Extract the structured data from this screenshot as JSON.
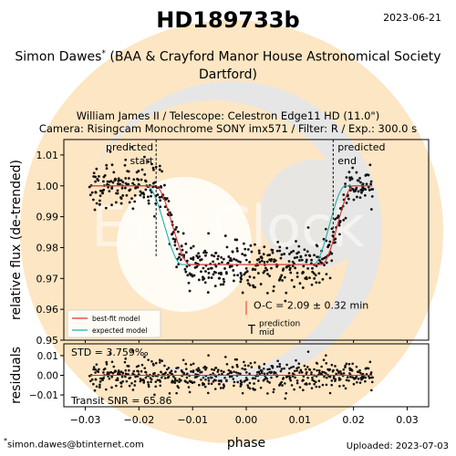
{
  "header": {
    "title": "HD189733b",
    "date": "2023-06-21",
    "observer": "Simon Dawes",
    "observer_mark": "*",
    "affiliation_line1": "(BAA & Crayford Manor House Astronomical Society",
    "affiliation_line2": "Dartford)",
    "instrument_line1": "William James II / Telescope: Celestron Edge11 HD (11.0\")",
    "instrument_line2": "Camera: Risingcam Monochrome SONY imx571 / Filter: R / Exp.: 300.0 s"
  },
  "footer": {
    "email": "simon.dawes@btinternet.com",
    "email_mark": "*",
    "uploaded": "Uploaded: 2023-07-03"
  },
  "watermark": {
    "text": "Exo Clock",
    "colors": {
      "orange": "#fde6c3",
      "grey": "#e6e6e6",
      "white": "#ffffff"
    }
  },
  "chart_data": {
    "type": "scatter",
    "xlabel": "phase",
    "ylabel": "relative flux (de-trended)",
    "residuals_ylabel": "residuals",
    "xlim": [
      -0.034,
      0.034
    ],
    "ylim": [
      0.95,
      1.015
    ],
    "residuals_ylim": [
      -0.016,
      0.016
    ],
    "x_ticks": [
      -0.03,
      -0.02,
      -0.01,
      0.0,
      0.01,
      0.02,
      0.03
    ],
    "x_tick_labels": [
      "−0.03",
      "−0.02",
      "−0.01",
      "0.00",
      "0.01",
      "0.02",
      "0.03"
    ],
    "y_ticks": [
      0.95,
      0.96,
      0.97,
      0.98,
      0.99,
      1.0,
      1.01
    ],
    "y_tick_labels": [
      "0.95",
      "0.96",
      "0.97",
      "0.98",
      "0.99",
      "1.00",
      "1.01"
    ],
    "residuals_y_ticks": [
      -0.01,
      0.0,
      0.01
    ],
    "residuals_y_tick_labels": [
      "−0.01",
      "0.00",
      "0.01"
    ],
    "grid": false,
    "data_range": [
      -0.029,
      0.0235
    ],
    "transit": {
      "t1": -0.0185,
      "t2": -0.012,
      "t3": 0.0125,
      "t4": 0.0185,
      "out_of_transit_flux": 1.0,
      "in_transit_flux": 0.9745
    },
    "predicted_start": {
      "x": -0.0168,
      "label_line1": "predicted",
      "label_line2": "start"
    },
    "predicted_end": {
      "x": 0.0162,
      "label_line1": "predicted",
      "label_line2": "end"
    },
    "prediction_mid": {
      "x": 0.0,
      "label_line1": "prediction",
      "label_line2": "mid",
      "symbol": "T"
    },
    "o_c": {
      "x": 0.0,
      "label": "O-C = 2.09 ± 0.32 min"
    },
    "series": [
      {
        "name": "best-fit model",
        "color": "#e03030"
      },
      {
        "name": "expected model",
        "color": "#20b0b0"
      }
    ],
    "points_color": "#111111",
    "std_label": "STD = 3.759‰",
    "snr_label": "Transit SNR = 65.86",
    "legend_position": "lower-left"
  }
}
